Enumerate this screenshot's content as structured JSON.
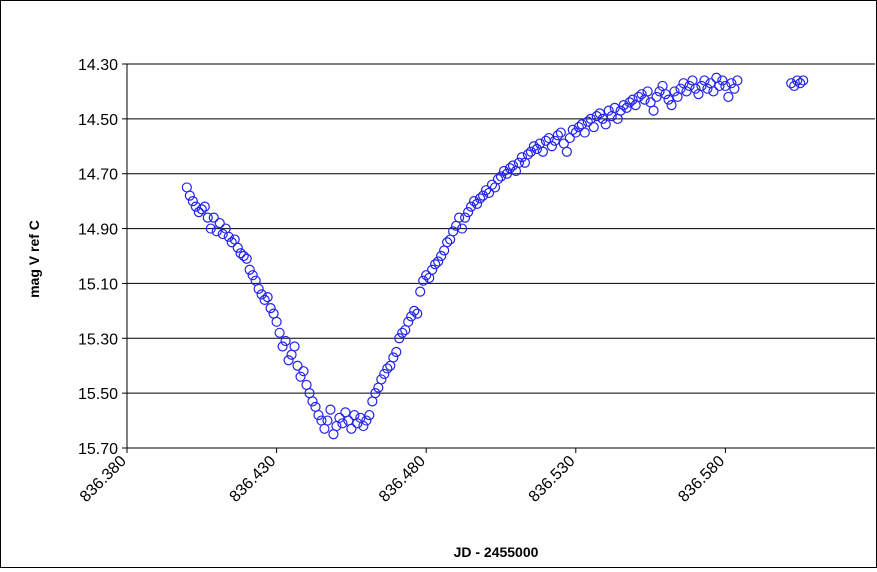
{
  "chart_data": {
    "type": "scatter",
    "title": "",
    "xlabel": "JD - 2455000",
    "ylabel": "mag V ref C",
    "xlim": [
      836.38,
      836.63
    ],
    "ylim": [
      15.7,
      14.3
    ],
    "y_inverted": true,
    "grid": {
      "horizontal": true,
      "vertical": false
    },
    "legend": "none",
    "x_ticks": [
      "836.380",
      "836.430",
      "836.480",
      "836.530",
      "836.580"
    ],
    "x_tick_values": [
      836.38,
      836.43,
      836.48,
      836.53,
      836.58
    ],
    "y_ticks": [
      "14.30",
      "14.50",
      "14.70",
      "14.90",
      "15.10",
      "15.30",
      "15.50",
      "15.70"
    ],
    "y_tick_values": [
      14.3,
      14.5,
      14.7,
      14.9,
      15.1,
      15.3,
      15.5,
      15.7
    ],
    "colors": {
      "marker": "#2222ee",
      "grid": "#000000",
      "axis": "#000000"
    },
    "series": [
      {
        "points": [
          [
            836.4,
            14.75
          ],
          [
            836.401,
            14.78
          ],
          [
            836.402,
            14.8
          ],
          [
            836.403,
            14.82
          ],
          [
            836.404,
            14.84
          ],
          [
            836.405,
            14.83
          ],
          [
            836.406,
            14.82
          ],
          [
            836.407,
            14.86
          ],
          [
            836.408,
            14.9
          ],
          [
            836.409,
            14.86
          ],
          [
            836.41,
            14.91
          ],
          [
            836.411,
            14.88
          ],
          [
            836.412,
            14.92
          ],
          [
            836.413,
            14.9
          ],
          [
            836.414,
            14.93
          ],
          [
            836.415,
            14.95
          ],
          [
            836.416,
            14.94
          ],
          [
            836.417,
            14.97
          ],
          [
            836.418,
            14.99
          ],
          [
            836.419,
            15.0
          ],
          [
            836.42,
            15.01
          ],
          [
            836.421,
            15.05
          ],
          [
            836.422,
            15.07
          ],
          [
            836.423,
            15.09
          ],
          [
            836.424,
            15.12
          ],
          [
            836.425,
            15.14
          ],
          [
            836.426,
            15.16
          ],
          [
            836.427,
            15.15
          ],
          [
            836.428,
            15.19
          ],
          [
            836.429,
            15.21
          ],
          [
            836.43,
            15.24
          ],
          [
            836.431,
            15.28
          ],
          [
            836.432,
            15.33
          ],
          [
            836.433,
            15.31
          ],
          [
            836.434,
            15.38
          ],
          [
            836.435,
            15.36
          ],
          [
            836.436,
            15.33
          ],
          [
            836.437,
            15.4
          ],
          [
            836.438,
            15.44
          ],
          [
            836.439,
            15.42
          ],
          [
            836.44,
            15.47
          ],
          [
            836.441,
            15.5
          ],
          [
            836.442,
            15.53
          ],
          [
            836.443,
            15.55
          ],
          [
            836.444,
            15.58
          ],
          [
            836.445,
            15.6
          ],
          [
            836.446,
            15.63
          ],
          [
            836.447,
            15.6
          ],
          [
            836.448,
            15.56
          ],
          [
            836.449,
            15.65
          ],
          [
            836.45,
            15.62
          ],
          [
            836.451,
            15.59
          ],
          [
            836.452,
            15.61
          ],
          [
            836.453,
            15.57
          ],
          [
            836.454,
            15.6
          ],
          [
            836.455,
            15.63
          ],
          [
            836.456,
            15.58
          ],
          [
            836.457,
            15.61
          ],
          [
            836.458,
            15.59
          ],
          [
            836.459,
            15.62
          ],
          [
            836.46,
            15.6
          ],
          [
            836.461,
            15.58
          ],
          [
            836.462,
            15.53
          ],
          [
            836.463,
            15.5
          ],
          [
            836.464,
            15.48
          ],
          [
            836.465,
            15.45
          ],
          [
            836.466,
            15.43
          ],
          [
            836.467,
            15.41
          ],
          [
            836.468,
            15.4
          ],
          [
            836.469,
            15.37
          ],
          [
            836.47,
            15.35
          ],
          [
            836.471,
            15.3
          ],
          [
            836.472,
            15.28
          ],
          [
            836.473,
            15.27
          ],
          [
            836.474,
            15.24
          ],
          [
            836.475,
            15.22
          ],
          [
            836.476,
            15.2
          ],
          [
            836.477,
            15.21
          ],
          [
            836.478,
            15.13
          ],
          [
            836.479,
            15.09
          ],
          [
            836.48,
            15.07
          ],
          [
            836.481,
            15.08
          ],
          [
            836.482,
            15.05
          ],
          [
            836.483,
            15.03
          ],
          [
            836.484,
            15.02
          ],
          [
            836.485,
            15.0
          ],
          [
            836.486,
            14.98
          ],
          [
            836.487,
            14.95
          ],
          [
            836.488,
            14.94
          ],
          [
            836.489,
            14.91
          ],
          [
            836.49,
            14.89
          ],
          [
            836.491,
            14.86
          ],
          [
            836.492,
            14.9
          ],
          [
            836.493,
            14.86
          ],
          [
            836.494,
            14.84
          ],
          [
            836.495,
            14.82
          ],
          [
            836.496,
            14.8
          ],
          [
            836.497,
            14.81
          ],
          [
            836.498,
            14.79
          ],
          [
            836.499,
            14.78
          ],
          [
            836.5,
            14.76
          ],
          [
            836.501,
            14.77
          ],
          [
            836.502,
            14.74
          ],
          [
            836.503,
            14.75
          ],
          [
            836.504,
            14.72
          ],
          [
            836.505,
            14.71
          ],
          [
            836.506,
            14.69
          ],
          [
            836.507,
            14.7
          ],
          [
            836.508,
            14.68
          ],
          [
            836.509,
            14.67
          ],
          [
            836.51,
            14.69
          ],
          [
            836.511,
            14.66
          ],
          [
            836.512,
            14.64
          ],
          [
            836.513,
            14.66
          ],
          [
            836.514,
            14.63
          ],
          [
            836.515,
            14.62
          ],
          [
            836.516,
            14.6
          ],
          [
            836.517,
            14.61
          ],
          [
            836.518,
            14.59
          ],
          [
            836.519,
            14.62
          ],
          [
            836.52,
            14.58
          ],
          [
            836.521,
            14.57
          ],
          [
            836.522,
            14.6
          ],
          [
            836.523,
            14.58
          ],
          [
            836.524,
            14.56
          ],
          [
            836.525,
            14.55
          ],
          [
            836.526,
            14.59
          ],
          [
            836.527,
            14.62
          ],
          [
            836.528,
            14.57
          ],
          [
            836.529,
            14.54
          ],
          [
            836.53,
            14.55
          ],
          [
            836.531,
            14.53
          ],
          [
            836.532,
            14.52
          ],
          [
            836.533,
            14.55
          ],
          [
            836.534,
            14.51
          ],
          [
            836.535,
            14.5
          ],
          [
            836.536,
            14.53
          ],
          [
            836.537,
            14.49
          ],
          [
            836.538,
            14.48
          ],
          [
            836.539,
            14.5
          ],
          [
            836.54,
            14.52
          ],
          [
            836.541,
            14.47
          ],
          [
            836.542,
            14.49
          ],
          [
            836.543,
            14.46
          ],
          [
            836.544,
            14.5
          ],
          [
            836.545,
            14.47
          ],
          [
            836.546,
            14.45
          ],
          [
            836.547,
            14.46
          ],
          [
            836.548,
            14.44
          ],
          [
            836.549,
            14.43
          ],
          [
            836.55,
            14.45
          ],
          [
            836.551,
            14.42
          ],
          [
            836.552,
            14.41
          ],
          [
            836.553,
            14.43
          ],
          [
            836.554,
            14.4
          ],
          [
            836.555,
            14.44
          ],
          [
            836.556,
            14.47
          ],
          [
            836.557,
            14.42
          ],
          [
            836.558,
            14.4
          ],
          [
            836.559,
            14.38
          ],
          [
            836.56,
            14.41
          ],
          [
            836.561,
            14.43
          ],
          [
            836.562,
            14.45
          ],
          [
            836.563,
            14.4
          ],
          [
            836.564,
            14.42
          ],
          [
            836.565,
            14.39
          ],
          [
            836.566,
            14.37
          ],
          [
            836.567,
            14.4
          ],
          [
            836.568,
            14.38
          ],
          [
            836.569,
            14.36
          ],
          [
            836.57,
            14.39
          ],
          [
            836.571,
            14.41
          ],
          [
            836.572,
            14.38
          ],
          [
            836.573,
            14.36
          ],
          [
            836.574,
            14.39
          ],
          [
            836.575,
            14.37
          ],
          [
            836.576,
            14.4
          ],
          [
            836.577,
            14.35
          ],
          [
            836.578,
            14.38
          ],
          [
            836.579,
            14.36
          ],
          [
            836.58,
            14.38
          ],
          [
            836.581,
            14.42
          ],
          [
            836.582,
            14.37
          ],
          [
            836.583,
            14.39
          ],
          [
            836.584,
            14.36
          ],
          [
            836.602,
            14.37
          ],
          [
            836.603,
            14.38
          ],
          [
            836.604,
            14.36
          ],
          [
            836.605,
            14.37
          ],
          [
            836.606,
            14.36
          ]
        ]
      }
    ]
  }
}
